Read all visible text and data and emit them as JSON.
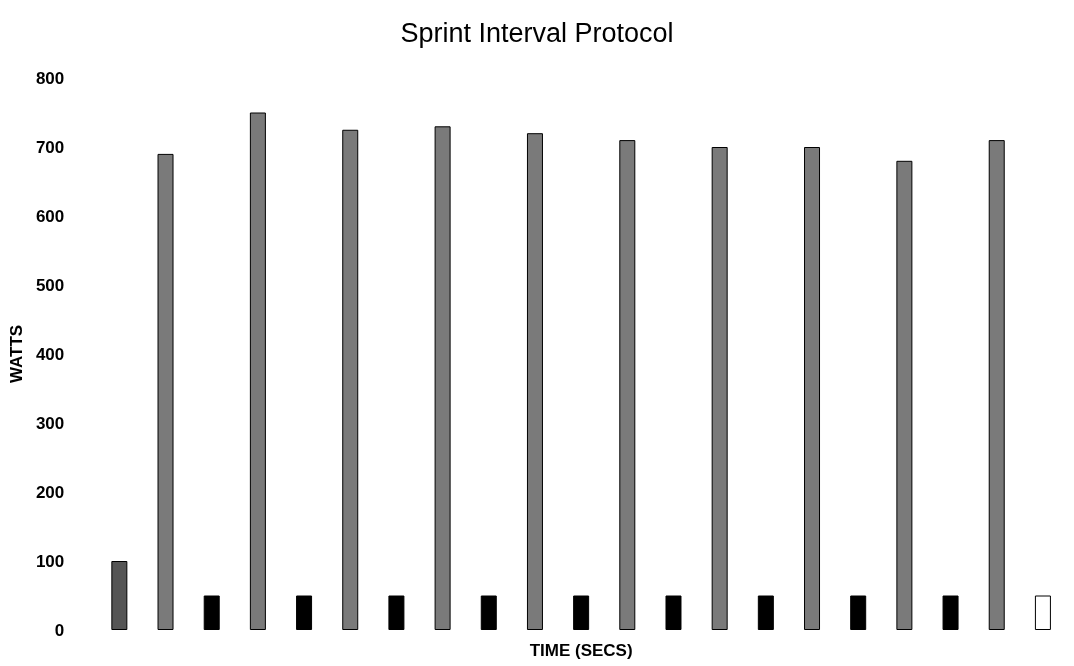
{
  "chart_data": {
    "type": "bar",
    "title": "Sprint Interval Protocol",
    "xlabel": "TIME (SECS)",
    "ylabel": "WATTS",
    "categories": [
      null,
      null,
      null,
      null,
      null,
      null,
      null,
      null,
      null,
      null,
      null,
      null,
      null,
      null,
      null,
      null,
      null,
      null,
      null,
      null,
      null
    ],
    "values": [
      100,
      690,
      50,
      750,
      50,
      725,
      50,
      730,
      50,
      720,
      50,
      710,
      50,
      700,
      50,
      700,
      50,
      680,
      50,
      710,
      50
    ],
    "colors": [
      "#555555",
      "#7a7a7a",
      "#000000",
      "#7a7a7a",
      "#000000",
      "#7a7a7a",
      "#000000",
      "#7a7a7a",
      "#000000",
      "#7a7a7a",
      "#000000",
      "#7a7a7a",
      "#000000",
      "#7a7a7a",
      "#000000",
      "#7a7a7a",
      "#000000",
      "#7a7a7a",
      "#000000",
      "#7a7a7a",
      "#ffffff"
    ],
    "ylim": [
      0,
      800
    ],
    "yticks": [
      0,
      100,
      200,
      300,
      400,
      500,
      600,
      700,
      800
    ],
    "grid": false,
    "tick_labels": "y"
  }
}
